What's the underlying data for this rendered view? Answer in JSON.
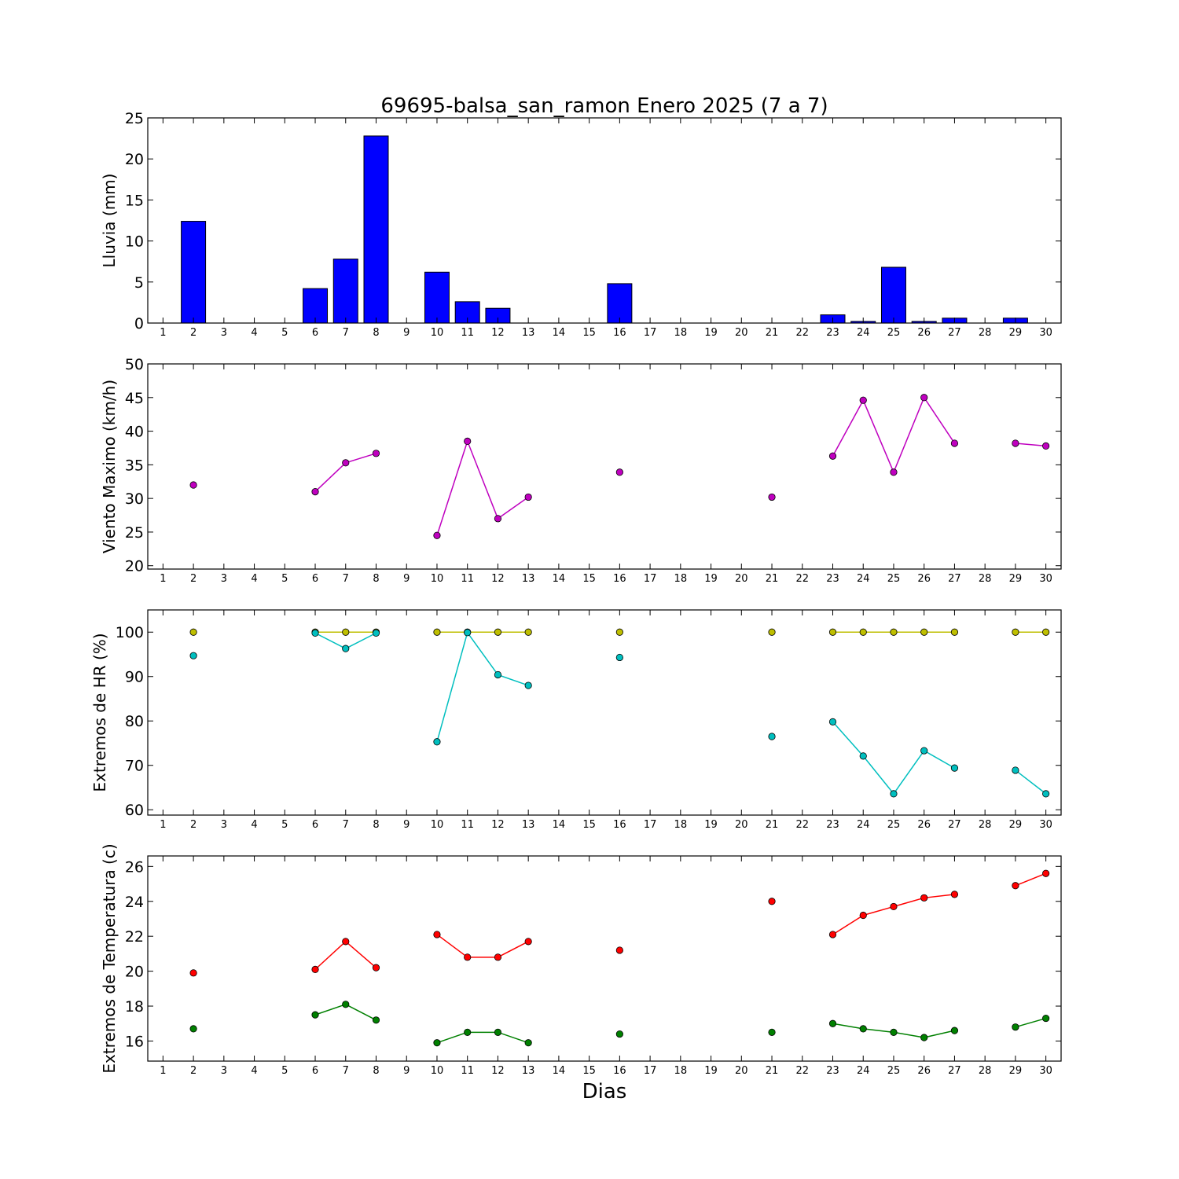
{
  "figure": {
    "title": "69695-balsa_san_ramon Enero 2025  (7 a 7)",
    "xlabel": "Dias"
  },
  "chart_data": [
    {
      "type": "bar",
      "id": "lluvia",
      "ylabel": "Lluvia (mm)",
      "ylim": [
        0,
        25
      ],
      "yticks": [
        0,
        5,
        10,
        15,
        20,
        25
      ],
      "xlim": [
        0.5,
        30.5
      ],
      "xticks": [
        1,
        2,
        3,
        4,
        5,
        6,
        7,
        8,
        9,
        10,
        11,
        12,
        13,
        14,
        15,
        16,
        17,
        18,
        19,
        20,
        21,
        22,
        23,
        24,
        25,
        26,
        27,
        28,
        29,
        30
      ],
      "x": [
        2,
        6,
        7,
        8,
        10,
        11,
        12,
        16,
        23,
        24,
        25,
        26,
        27,
        29
      ],
      "values": [
        12.4,
        4.2,
        7.8,
        22.8,
        6.2,
        2.6,
        1.8,
        4.8,
        1.0,
        0.2,
        6.8,
        0.2,
        0.6,
        0.6
      ],
      "color": "#0000ff"
    },
    {
      "type": "line",
      "id": "viento",
      "ylabel": "Viento Maximo (km/h)",
      "ylim": [
        19.5,
        50
      ],
      "yticks": [
        20,
        25,
        30,
        35,
        40,
        45,
        50
      ],
      "xlim": [
        0.5,
        30.5
      ],
      "xticks": [
        1,
        2,
        3,
        4,
        5,
        6,
        7,
        8,
        9,
        10,
        11,
        12,
        13,
        14,
        15,
        16,
        17,
        18,
        19,
        20,
        21,
        22,
        23,
        24,
        25,
        26,
        27,
        28,
        29,
        30
      ],
      "series": [
        {
          "color": "#bf00bf",
          "points": [
            [
              2,
              32
            ],
            [
              6,
              31
            ],
            [
              7,
              35.3
            ],
            [
              8,
              36.7
            ],
            [
              10,
              24.5
            ],
            [
              11,
              38.5
            ],
            [
              12,
              27
            ],
            [
              13,
              30.2
            ],
            [
              16,
              33.9
            ],
            [
              21,
              30.2
            ],
            [
              23,
              36.3
            ],
            [
              24,
              44.6
            ],
            [
              25,
              33.9
            ],
            [
              26,
              45
            ],
            [
              27,
              38.2
            ],
            [
              29,
              38.2
            ],
            [
              30,
              37.8
            ]
          ]
        }
      ]
    },
    {
      "type": "line",
      "id": "humedad",
      "ylabel": "Extremos de HR (%)",
      "ylim": [
        58.8,
        105
      ],
      "yticks": [
        60,
        70,
        80,
        90,
        100
      ],
      "xlim": [
        0.5,
        30.5
      ],
      "xticks": [
        1,
        2,
        3,
        4,
        5,
        6,
        7,
        8,
        9,
        10,
        11,
        12,
        13,
        14,
        15,
        16,
        17,
        18,
        19,
        20,
        21,
        22,
        23,
        24,
        25,
        26,
        27,
        28,
        29,
        30
      ],
      "series": [
        {
          "color": "#bfbf00",
          "points": [
            [
              2,
              100
            ],
            [
              6,
              100
            ],
            [
              7,
              100
            ],
            [
              8,
              100
            ],
            [
              10,
              100
            ],
            [
              11,
              100
            ],
            [
              12,
              100
            ],
            [
              13,
              100
            ],
            [
              16,
              100
            ],
            [
              21,
              100
            ],
            [
              23,
              100
            ],
            [
              24,
              100
            ],
            [
              25,
              100
            ],
            [
              26,
              100
            ],
            [
              27,
              100
            ],
            [
              29,
              100
            ],
            [
              30,
              100
            ]
          ]
        },
        {
          "color": "#00bfbf",
          "points": [
            [
              2,
              94.7
            ],
            [
              6,
              99.8
            ],
            [
              7,
              96.3
            ],
            [
              8,
              99.8
            ],
            [
              10,
              75.3
            ],
            [
              11,
              99.9
            ],
            [
              12,
              90.4
            ],
            [
              13,
              88
            ],
            [
              16,
              94.3
            ],
            [
              21,
              76.5
            ],
            [
              23,
              79.8
            ],
            [
              24,
              72.1
            ],
            [
              25,
              63.6
            ],
            [
              26,
              73.3
            ],
            [
              27,
              69.4
            ],
            [
              29,
              68.9
            ],
            [
              30,
              63.6
            ]
          ]
        }
      ]
    },
    {
      "type": "line",
      "id": "temperatura",
      "ylabel": "Extremos de Temperatura (c)",
      "ylim": [
        14.85,
        26.6
      ],
      "yticks": [
        16,
        18,
        20,
        22,
        24,
        26
      ],
      "xlim": [
        0.5,
        30.5
      ],
      "xticks": [
        1,
        2,
        3,
        4,
        5,
        6,
        7,
        8,
        9,
        10,
        11,
        12,
        13,
        14,
        15,
        16,
        17,
        18,
        19,
        20,
        21,
        22,
        23,
        24,
        25,
        26,
        27,
        28,
        29,
        30
      ],
      "series": [
        {
          "color": "#ff0000",
          "points": [
            [
              2,
              19.9
            ],
            [
              6,
              20.1
            ],
            [
              7,
              21.7
            ],
            [
              8,
              20.2
            ],
            [
              10,
              22.1
            ],
            [
              11,
              20.8
            ],
            [
              12,
              20.8
            ],
            [
              13,
              21.7
            ],
            [
              16,
              21.2
            ],
            [
              21,
              24
            ],
            [
              23,
              22.1
            ],
            [
              24,
              23.2
            ],
            [
              25,
              23.7
            ],
            [
              26,
              24.2
            ],
            [
              27,
              24.4
            ],
            [
              29,
              24.9
            ],
            [
              30,
              25.6
            ]
          ]
        },
        {
          "color": "#008000",
          "points": [
            [
              2,
              16.7
            ],
            [
              6,
              17.5
            ],
            [
              7,
              18.1
            ],
            [
              8,
              17.2
            ],
            [
              10,
              15.9
            ],
            [
              11,
              16.5
            ],
            [
              12,
              16.5
            ],
            [
              13,
              15.9
            ],
            [
              16,
              16.4
            ],
            [
              21,
              16.5
            ],
            [
              23,
              17
            ],
            [
              24,
              16.7
            ],
            [
              25,
              16.5
            ],
            [
              26,
              16.2
            ],
            [
              27,
              16.6
            ],
            [
              29,
              16.8
            ],
            [
              30,
              17.3
            ]
          ]
        }
      ]
    }
  ]
}
